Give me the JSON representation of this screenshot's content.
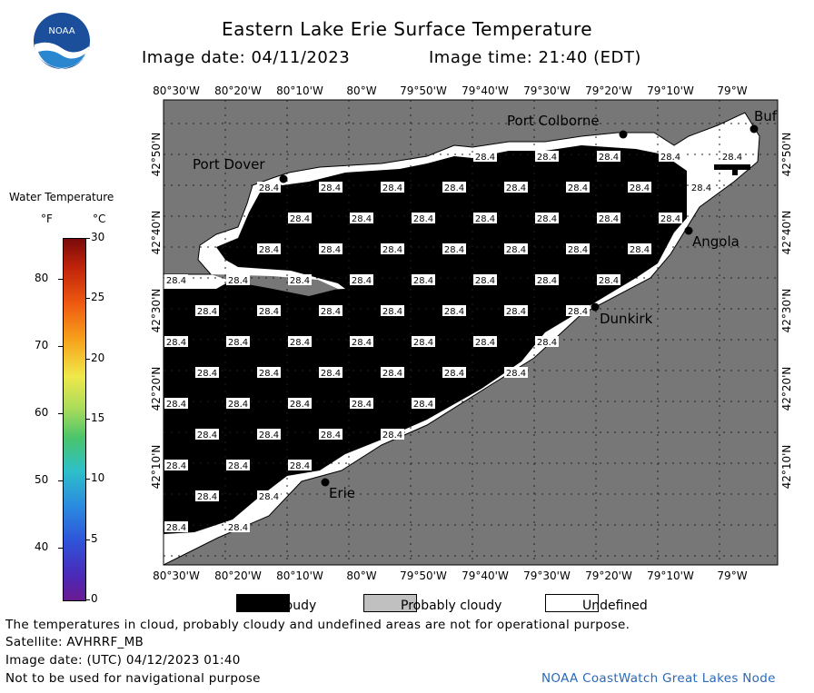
{
  "header": {
    "title": "Eastern Lake Erie Surface Temperature",
    "image_date": "Image date: 04/11/2023",
    "image_time": "Image time: 21:40 (EDT)"
  },
  "logo": {
    "text": "NOAA"
  },
  "colorbar": {
    "title": "Water Temperature",
    "unit_f": "°F",
    "unit_c": "°C",
    "f_ticks": [
      "80",
      "70",
      "60",
      "50",
      "40"
    ],
    "c_ticks": [
      "30",
      "25",
      "20",
      "15",
      "10",
      "5",
      "0"
    ]
  },
  "map": {
    "top_lon_labels": [
      "80°30'W",
      "80°20'W",
      "80°10'W",
      "80°W",
      "79°50'W",
      "79°40'W",
      "79°30'W",
      "79°20'W",
      "79°10'W",
      "79°W"
    ],
    "bottom_lon_labels": [
      "80°30'W",
      "80°20'W",
      "80°10'W",
      "80°W",
      "79°50'W",
      "79°40'W",
      "79°30'W",
      "79°20'W",
      "79°10'W",
      "79°W"
    ],
    "lat_labels": [
      "42°50'N",
      "42°40'N",
      "42°30'N",
      "42°20'N",
      "42°10'N"
    ],
    "cities": {
      "port_dover": "Port Dover",
      "port_colborne": "Port Colborne",
      "buffalo": "Buf",
      "angola": "Angola",
      "dunkirk": "Dunkirk",
      "erie": "Erie"
    },
    "temp_value": "28.4",
    "colors": {
      "land": "#777777",
      "cloud": "#000000",
      "undefined": "#ffffff",
      "probably_cloudy": "#777777"
    }
  },
  "legend": {
    "cloudy": "Cloudy",
    "probably_cloudy": "Probably cloudy",
    "undefined": "Undefined"
  },
  "footer": {
    "note": "The temperatures in cloud, probably cloudy and undefined areas are not for operational purpose.",
    "satellite": "Satellite: AVHRRF_MB",
    "utc_date": "Image date: (UTC) 04/12/2023  01:40",
    "nav": "Not to be used for navigational purpose",
    "credit": "NOAA CoastWatch Great Lakes Node"
  }
}
